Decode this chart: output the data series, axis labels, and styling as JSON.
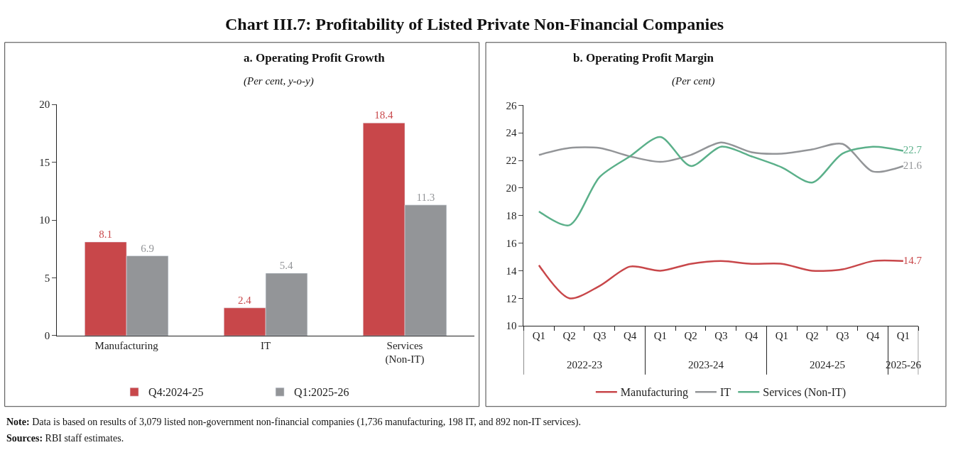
{
  "chart_data": [
    {
      "type": "bar",
      "title": "a. Operating Profit Growth",
      "subtitle": "(Per cent, y-o-y)",
      "categories": [
        "Manufacturing",
        "IT",
        "Services (Non-IT)"
      ],
      "series": [
        {
          "name": "Q4:2024-25",
          "color": "#c8474a",
          "values": [
            8.1,
            2.4,
            18.4
          ]
        },
        {
          "name": "Q1:2025-26",
          "color": "#939598",
          "values": [
            6.9,
            5.4,
            11.3
          ]
        }
      ],
      "ylim": [
        0,
        20
      ],
      "yticks": [
        0,
        5,
        10,
        15,
        20
      ],
      "data_labels": true,
      "legend": "bottom",
      "annotations": [
        "Chart III.7: Profitability of Listed Private Non-Financial Companies",
        "Note: Data is based on results of 3,079 listed non-government non-financial companies (1,736 manufacturing, 198 IT, and 892 non-IT services).",
        "Sources: RBI staff estimates."
      ]
    },
    {
      "type": "line",
      "title": "b. Operating Profit Margin",
      "subtitle": "(Per cent)",
      "categories": [
        "Q1",
        "Q2",
        "Q3",
        "Q4",
        "Q1",
        "Q2",
        "Q3",
        "Q4",
        "Q1",
        "Q2",
        "Q3",
        "Q4",
        "Q1"
      ],
      "series": [
        {
          "name": "Manufacturing",
          "color": "#c8474a",
          "values": [
            14.4,
            12.0,
            12.9,
            14.3,
            14.0,
            14.5,
            14.7,
            14.5,
            14.5,
            14.0,
            14.1,
            14.7,
            14.7
          ],
          "value_labels": [
            null,
            null,
            null,
            null,
            null,
            null,
            null,
            null,
            null,
            null,
            null,
            null,
            "14.7"
          ]
        },
        {
          "name": "IT",
          "color": "#939598",
          "values": [
            22.4,
            22.9,
            22.9,
            22.3,
            21.9,
            22.4,
            23.3,
            22.6,
            22.5,
            22.8,
            23.2,
            21.2,
            21.6
          ],
          "value_labels": [
            null,
            null,
            null,
            null,
            null,
            null,
            null,
            null,
            null,
            null,
            null,
            null,
            "21.6"
          ]
        },
        {
          "name": "Services (Non-IT)",
          "color": "#5bb08a",
          "values": [
            18.3,
            17.3,
            20.8,
            22.3,
            23.7,
            21.6,
            23.0,
            22.3,
            21.5,
            20.4,
            22.5,
            23.0,
            22.7
          ],
          "value_labels": [
            null,
            null,
            null,
            null,
            null,
            null,
            null,
            null,
            null,
            null,
            null,
            null,
            "22.7"
          ]
        }
      ],
      "ylim": [
        10,
        26
      ],
      "yticks": [
        10,
        12,
        14,
        16,
        18,
        20,
        22,
        24,
        26
      ],
      "legend": "bottom",
      "marker": "none",
      "line_style": "solid",
      "annotations": [
        "2022-23",
        "2023-24",
        "2024-25",
        "2025-26"
      ]
    }
  ]
}
